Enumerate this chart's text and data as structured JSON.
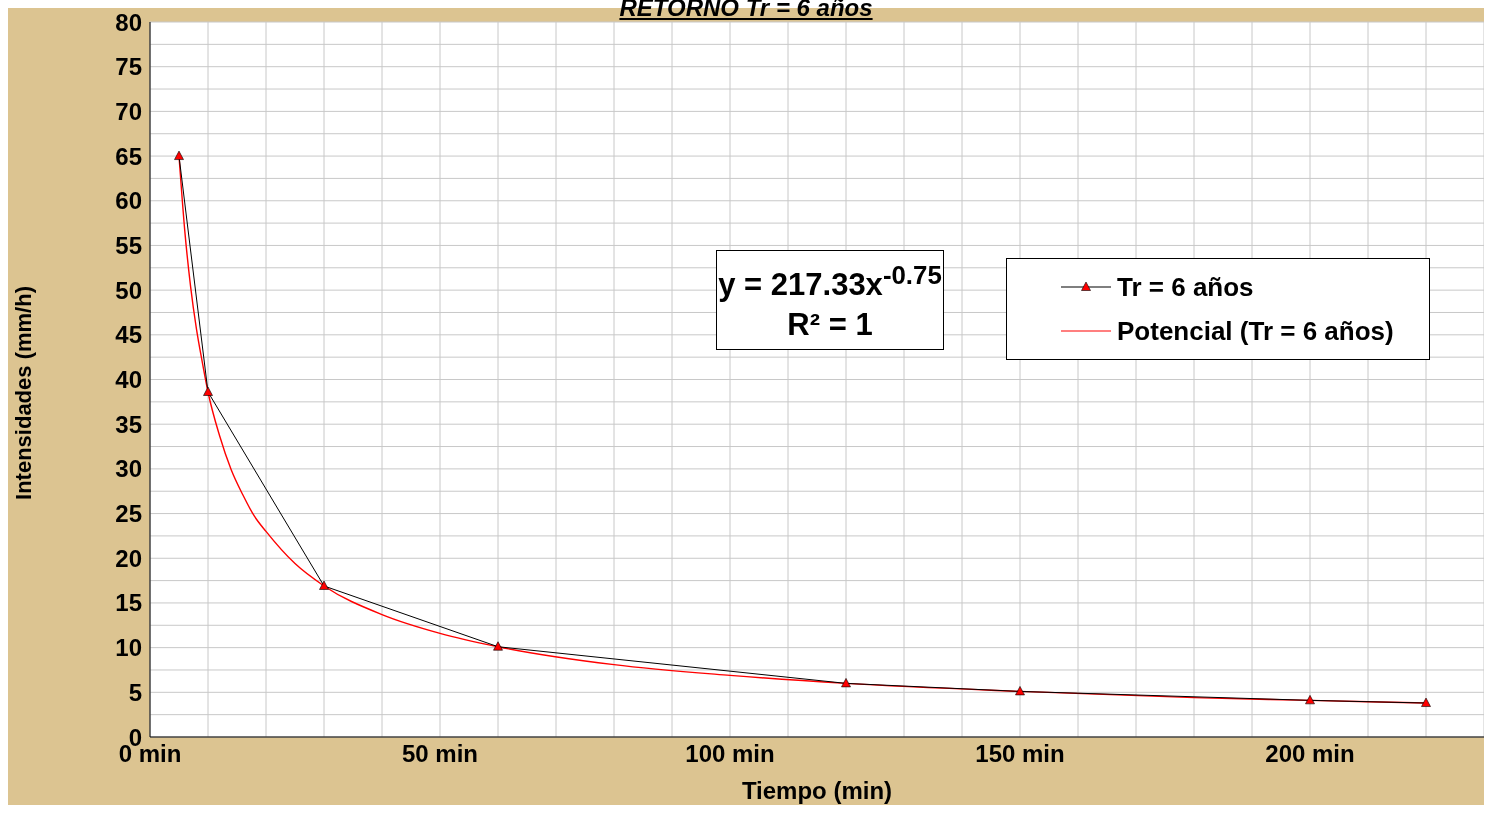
{
  "chart_data": {
    "type": "line",
    "title": "RETORNO Tr = 6 años",
    "xlabel": "Tiempo (min)",
    "ylabel": "Intensidades (mm/h)",
    "annotations": [
      "y = 217.33x$^{-0.75}$\nR² = 1"
    ],
    "series": [
      {
        "name": "Tr = 6 años",
        "color": "#000000",
        "marker": "triangle",
        "colors": [
          "#ff0000",
          "#ff0000",
          "#ff0000",
          "#ff0000",
          "#ff0000",
          "#ff0000",
          "#ff0000",
          "#ff0000"
        ],
        "x": [
          5,
          10,
          30,
          60,
          120,
          150,
          200,
          220
        ],
        "values": [
          65.0,
          38.6,
          16.9,
          10.1,
          6.0,
          5.1,
          4.1,
          3.8
        ]
      },
      {
        "name": "Potencial (Tr = 6 años)",
        "type": "line",
        "color": "#ff0000",
        "marker": "none",
        "x": [
          5,
          6,
          7,
          8,
          9,
          10,
          12,
          14,
          16,
          18,
          20,
          25,
          30,
          40,
          50,
          60,
          80,
          100,
          120,
          150,
          180,
          200,
          220
        ],
        "values": [
          65.0,
          56.6,
          50.4,
          45.7,
          42.0,
          38.6,
          33.7,
          29.9,
          27.1,
          24.7,
          23.0,
          19.4,
          16.9,
          13.7,
          11.6,
          10.1,
          8.1,
          6.9,
          6.0,
          5.1,
          4.4,
          4.1,
          3.8
        ]
      }
    ],
    "xlim": [
      0,
      230
    ],
    "xticks": [
      {
        "value": 0,
        "label": "0 min"
      },
      {
        "value": 10,
        "label": null
      },
      {
        "value": 20,
        "label": null
      },
      {
        "value": 30,
        "label": null
      },
      {
        "value": 40,
        "label": null
      },
      {
        "value": 50,
        "label": "50 min"
      },
      {
        "value": 60,
        "label": null
      },
      {
        "value": 70,
        "label": null
      },
      {
        "value": 80,
        "label": null
      },
      {
        "value": 90,
        "label": null
      },
      {
        "value": 100,
        "label": "100 min"
      },
      {
        "value": 110,
        "label": null
      },
      {
        "value": 120,
        "label": null
      },
      {
        "value": 130,
        "label": null
      },
      {
        "value": 140,
        "label": null
      },
      {
        "value": 150,
        "label": "150 min"
      },
      {
        "value": 160,
        "label": null
      },
      {
        "value": 170,
        "label": null
      },
      {
        "value": 180,
        "label": null
      },
      {
        "value": 190,
        "label": null
      },
      {
        "value": 200,
        "label": "200 min"
      },
      {
        "value": 210,
        "label": null
      },
      {
        "value": 220,
        "label": null
      },
      {
        "value": 230,
        "label": null
      }
    ],
    "ylim": [
      0,
      80
    ],
    "yticks": [
      0,
      {
        "value": 2.5,
        "label": null
      },
      5,
      {
        "value": 7.5,
        "label": null
      },
      10,
      {
        "value": 12.5,
        "label": null
      },
      15,
      {
        "value": 17.5,
        "label": null
      },
      20,
      {
        "value": 22.5,
        "label": null
      },
      25,
      {
        "value": 27.5,
        "label": null
      },
      30,
      {
        "value": 32.5,
        "label": null
      },
      35,
      {
        "value": 37.5,
        "label": null
      },
      40,
      {
        "value": 42.5,
        "label": null
      },
      45,
      {
        "value": 47.5,
        "label": null
      },
      50,
      {
        "value": 52.5,
        "label": null
      },
      55,
      {
        "value": 57.5,
        "label": null
      },
      60,
      {
        "value": 62.5,
        "label": null
      },
      65,
      {
        "value": 67.5,
        "label": null
      },
      70,
      {
        "value": 72.5,
        "label": null
      },
      75,
      {
        "value": 77.5,
        "label": null
      },
      80
    ],
    "grid": true,
    "legend": "top right",
    "line_style": "solid"
  }
}
